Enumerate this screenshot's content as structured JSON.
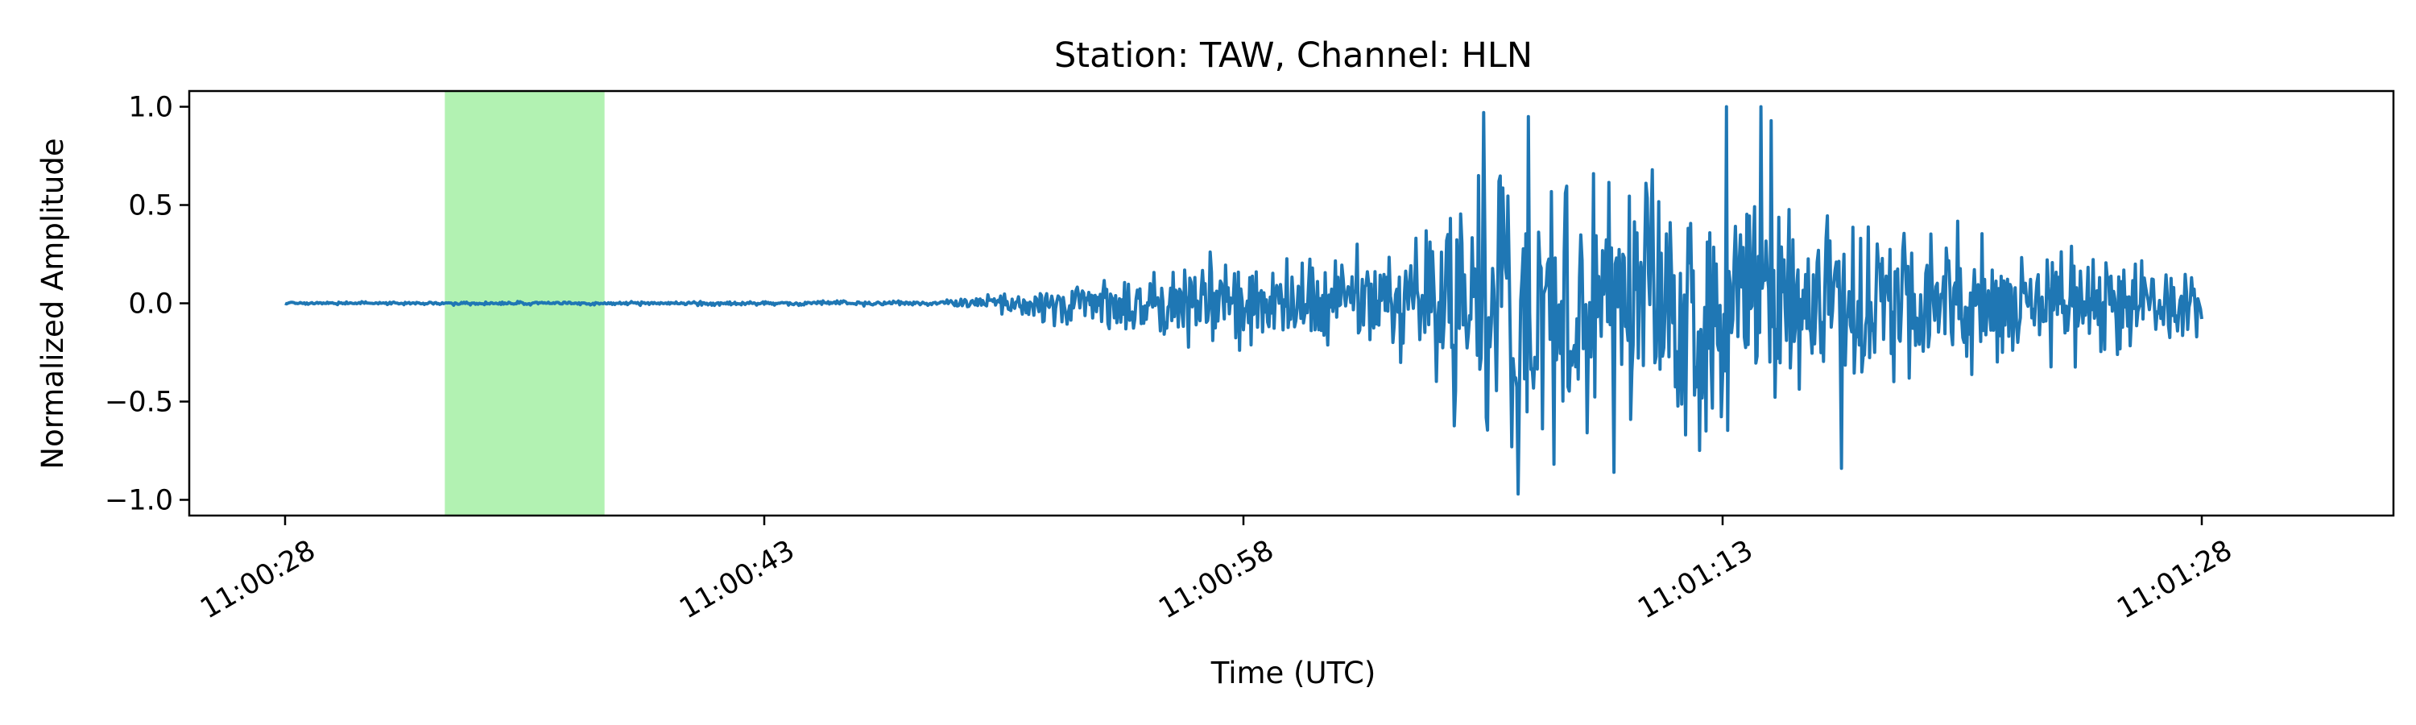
{
  "chart_data": {
    "type": "line",
    "title": "Station: TAW, Channel: HLN",
    "xlabel": "Time (UTC)",
    "ylabel": "Normalized Amplitude",
    "x_range_seconds": [
      -3,
      66
    ],
    "ylim": [
      -1.08,
      1.08
    ],
    "x_ticks": [
      {
        "t": 0,
        "label": "11:00:28"
      },
      {
        "t": 15,
        "label": "11:00:43"
      },
      {
        "t": 30,
        "label": "11:00:58"
      },
      {
        "t": 45,
        "label": "11:01:13"
      },
      {
        "t": 60,
        "label": "11:01:28"
      }
    ],
    "y_ticks": [
      {
        "v": 1.0,
        "label": "1.0"
      },
      {
        "v": 0.5,
        "label": "0.5"
      },
      {
        "v": 0.0,
        "label": "0.0"
      },
      {
        "v": -0.5,
        "label": "−0.5"
      },
      {
        "v": -1.0,
        "label": "−1.0"
      }
    ],
    "highlight_span": {
      "start": 5,
      "end": 10,
      "color": "#b2f2b2"
    },
    "grid": false,
    "series": [
      {
        "color": "#1f77b4",
        "envelope": [
          {
            "t": 0,
            "amp": 0.006
          },
          {
            "t": 5,
            "amp": 0.006
          },
          {
            "t": 10,
            "amp": 0.007
          },
          {
            "t": 14,
            "amp": 0.01
          },
          {
            "t": 16,
            "amp": 0.012
          },
          {
            "t": 20,
            "amp": 0.01
          },
          {
            "t": 21.5,
            "amp": 0.03
          },
          {
            "t": 24,
            "amp": 0.08
          },
          {
            "t": 27,
            "amp": 0.18
          },
          {
            "t": 30,
            "amp": 0.22
          },
          {
            "t": 33,
            "amp": 0.18
          },
          {
            "t": 35.5,
            "amp": 0.3
          },
          {
            "t": 37,
            "amp": 0.6
          },
          {
            "t": 39,
            "amp": 0.75
          },
          {
            "t": 42,
            "amp": 0.65
          },
          {
            "t": 45,
            "amp": 0.7
          },
          {
            "t": 47,
            "amp": 0.55
          },
          {
            "t": 50,
            "amp": 0.38
          },
          {
            "t": 55,
            "amp": 0.28
          },
          {
            "t": 60,
            "amp": 0.18
          }
        ],
        "peaks": [
          {
            "t": 37.5,
            "v": 0.97
          },
          {
            "t": 38.4,
            "v": -0.73
          },
          {
            "t": 38.9,
            "v": 0.95
          },
          {
            "t": 38.6,
            "v": -0.97
          },
          {
            "t": 41.6,
            "v": -0.86
          },
          {
            "t": 45.1,
            "v": 1.0
          },
          {
            "t": 46.2,
            "v": 1.0
          },
          {
            "t": 48.7,
            "v": -0.84
          }
        ]
      }
    ]
  }
}
